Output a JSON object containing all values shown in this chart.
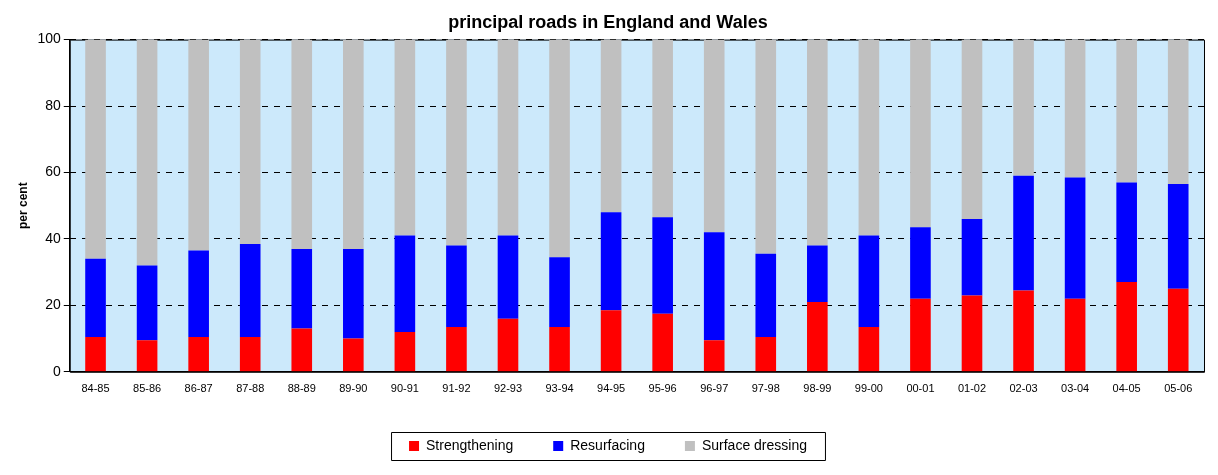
{
  "chart_data": {
    "type": "bar",
    "title": "principal roads in England and Wales",
    "ylabel": "per cent",
    "stacked": true,
    "categories": [
      "84-85",
      "85-86",
      "86-87",
      "87-88",
      "88-89",
      "89-90",
      "90-91",
      "91-92",
      "92-93",
      "93-94",
      "94-95",
      "95-96",
      "96-97",
      "97-98",
      "98-99",
      "99-00",
      "00-01",
      "01-02",
      "02-03",
      "03-04",
      "04-05",
      "05-06"
    ],
    "series": [
      {
        "name": "Strengthening",
        "color": "#ff0000",
        "values": [
          10.5,
          9.5,
          10.5,
          10.5,
          13,
          10,
          12,
          13.5,
          16,
          13.5,
          18.5,
          17.5,
          9.5,
          10.5,
          21,
          13.5,
          22,
          23,
          24.5,
          22,
          27,
          25
        ]
      },
      {
        "name": "Resurfacing",
        "color": "#0000ff",
        "values": [
          23.5,
          22.5,
          26,
          28,
          24,
          27,
          29,
          24.5,
          25,
          21,
          29.5,
          29,
          32.5,
          25,
          17,
          27.5,
          21.5,
          23,
          34.5,
          36.5,
          30,
          31.5
        ]
      },
      {
        "name": "Surface dressing",
        "color": "#c0c0c0",
        "values": [
          66,
          68,
          63.5,
          61.5,
          63,
          63,
          59,
          62,
          59,
          65.5,
          52,
          53.5,
          58,
          64.5,
          62,
          59,
          56.5,
          54,
          41,
          41.5,
          43,
          43.5
        ]
      }
    ],
    "ylim": [
      0,
      100
    ],
    "yticks": [
      0,
      20,
      40,
      60,
      80,
      100
    ],
    "grid": "y",
    "legend": "bottom"
  }
}
